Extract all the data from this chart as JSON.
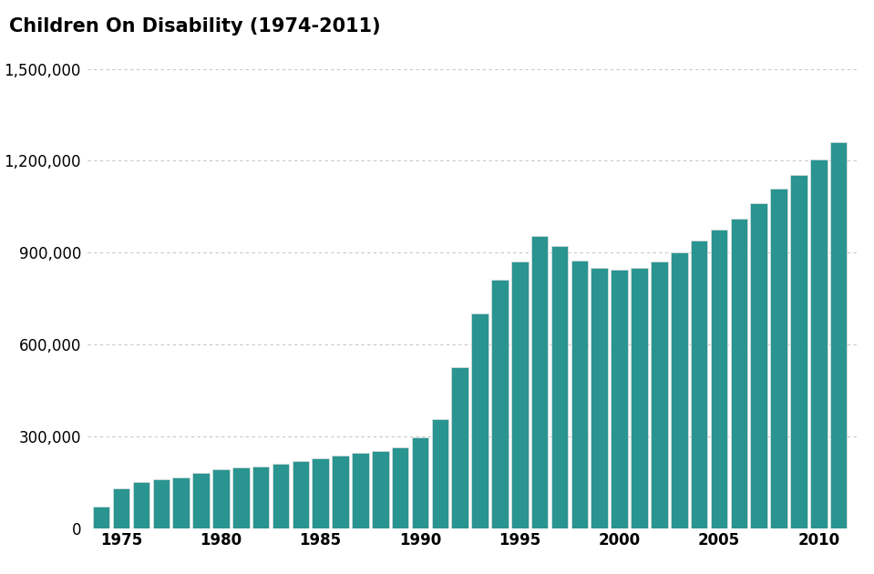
{
  "title": "Children On Disability (1974-2011)",
  "bar_color": "#2a9490",
  "background_color": "#ffffff",
  "years": [
    1974,
    1975,
    1976,
    1977,
    1978,
    1979,
    1980,
    1981,
    1982,
    1983,
    1984,
    1985,
    1986,
    1987,
    1988,
    1989,
    1990,
    1991,
    1992,
    1993,
    1994,
    1995,
    1996,
    1997,
    1998,
    1999,
    2000,
    2001,
    2002,
    2003,
    2004,
    2005,
    2006,
    2007,
    2008,
    2009,
    2010,
    2011
  ],
  "values": [
    71000,
    130000,
    150000,
    160000,
    165000,
    180000,
    193000,
    199000,
    202000,
    210000,
    218000,
    228000,
    237000,
    245000,
    252000,
    265000,
    296000,
    356000,
    525000,
    700000,
    810000,
    870000,
    955000,
    920000,
    875000,
    850000,
    845000,
    850000,
    870000,
    900000,
    940000,
    975000,
    1010000,
    1060000,
    1110000,
    1155000,
    1205000,
    1260000
  ],
  "ylim": [
    0,
    1500000
  ],
  "yticks": [
    0,
    300000,
    600000,
    900000,
    1200000,
    1500000
  ],
  "ytick_labels": [
    "0",
    "300,000",
    "600,000",
    "900,000",
    "1,200,000",
    "1,500,000"
  ],
  "xticks": [
    1975,
    1980,
    1985,
    1990,
    1995,
    2000,
    2005,
    2010
  ],
  "title_fontsize": 15,
  "tick_fontsize": 12,
  "grid_color": "#c8c8c8",
  "bar_edge_color": "#e0e0e0",
  "bar_edge_width": 0.5
}
